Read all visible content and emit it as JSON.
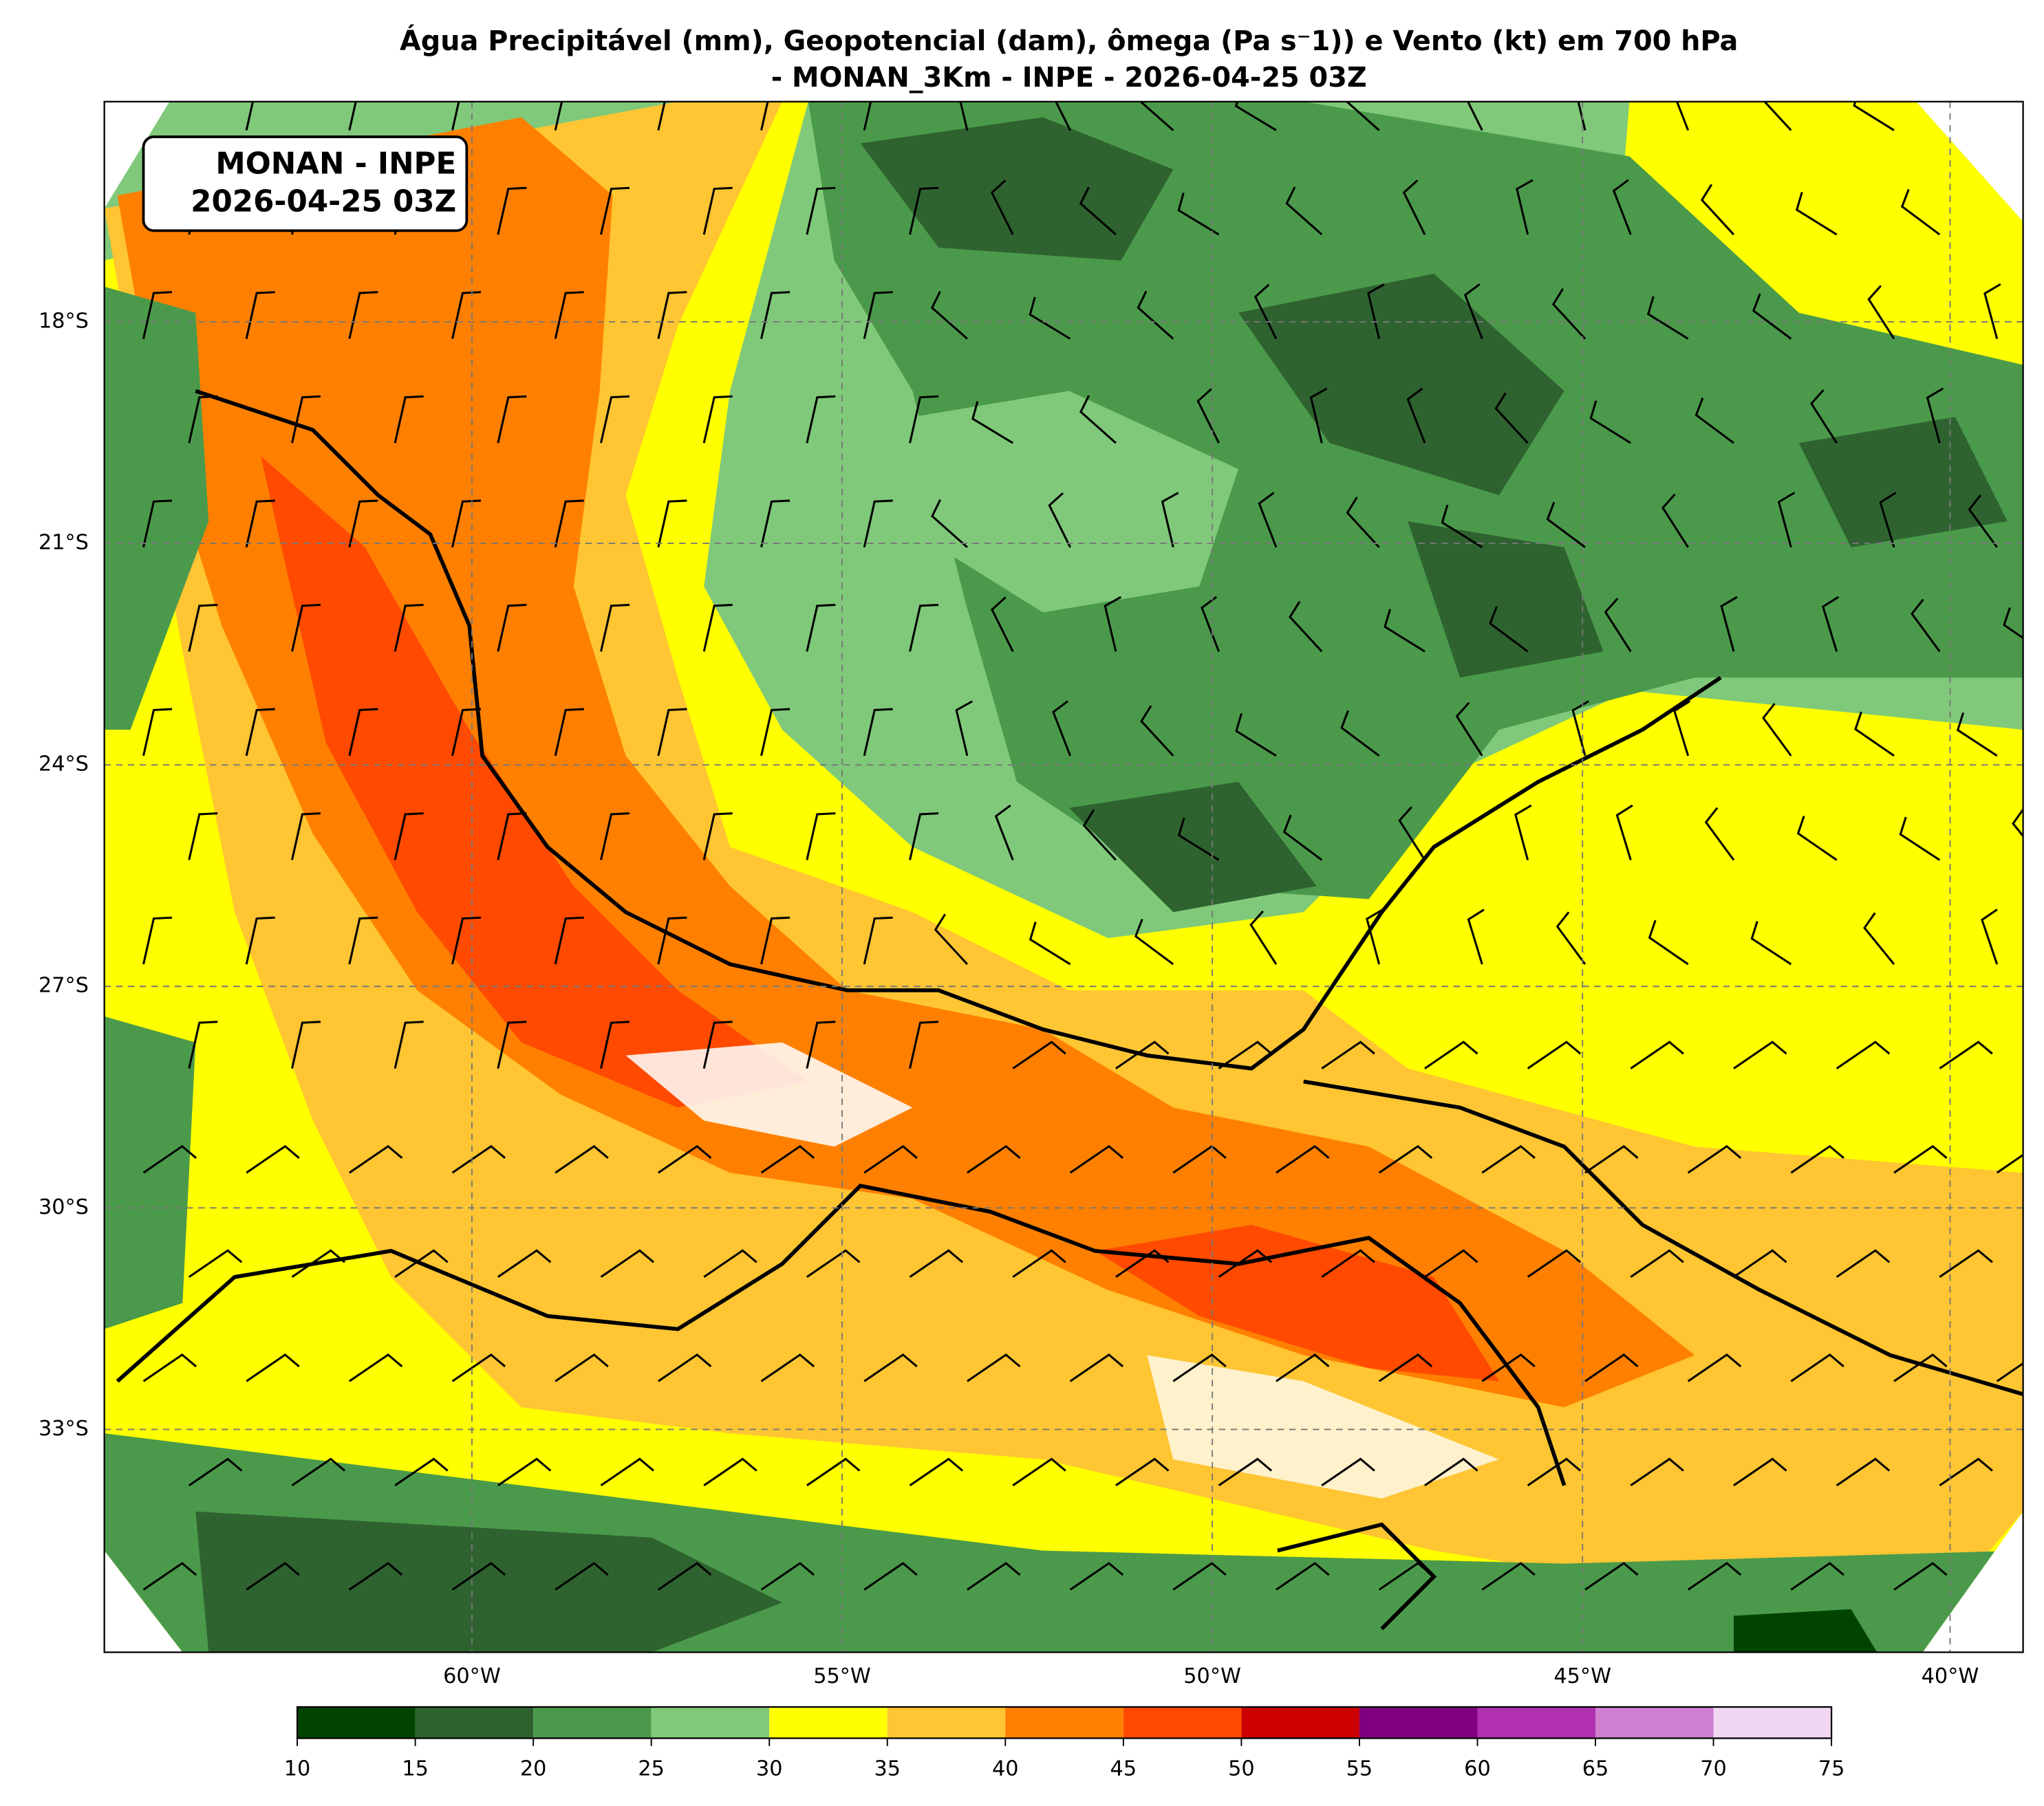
{
  "title": [
    "Água Precipitável (mm), Geopotencial (dam), ômega (Pa s⁻1)) e Vento (kt) em 700 hPa",
    "- MONAN_3Km - INPE - 2026-04-25 03Z"
  ],
  "annotation": [
    "MONAN - INPE",
    "2026-04-25 03Z"
  ],
  "map": {
    "lat_labels": [
      "18°S",
      "21°S",
      "24°S",
      "27°S",
      "30°S",
      "33°S"
    ],
    "lon_labels": [
      "60°W",
      "55°W",
      "50°W",
      "45°W",
      "40°W"
    ]
  },
  "colorbar": {
    "bounds": [
      10,
      15,
      20,
      25,
      30,
      35,
      40,
      45,
      50,
      55,
      60,
      65,
      70,
      75
    ],
    "colors": [
      "#004400",
      "#2e6330",
      "#4b9a4b",
      "#80c97a",
      "#ffff00",
      "#ffc533",
      "#ff8000",
      "#ff4a00",
      "#cc0000",
      "#800080",
      "#b030b0",
      "#cf7fcf",
      "#f0d6f0"
    ]
  }
}
